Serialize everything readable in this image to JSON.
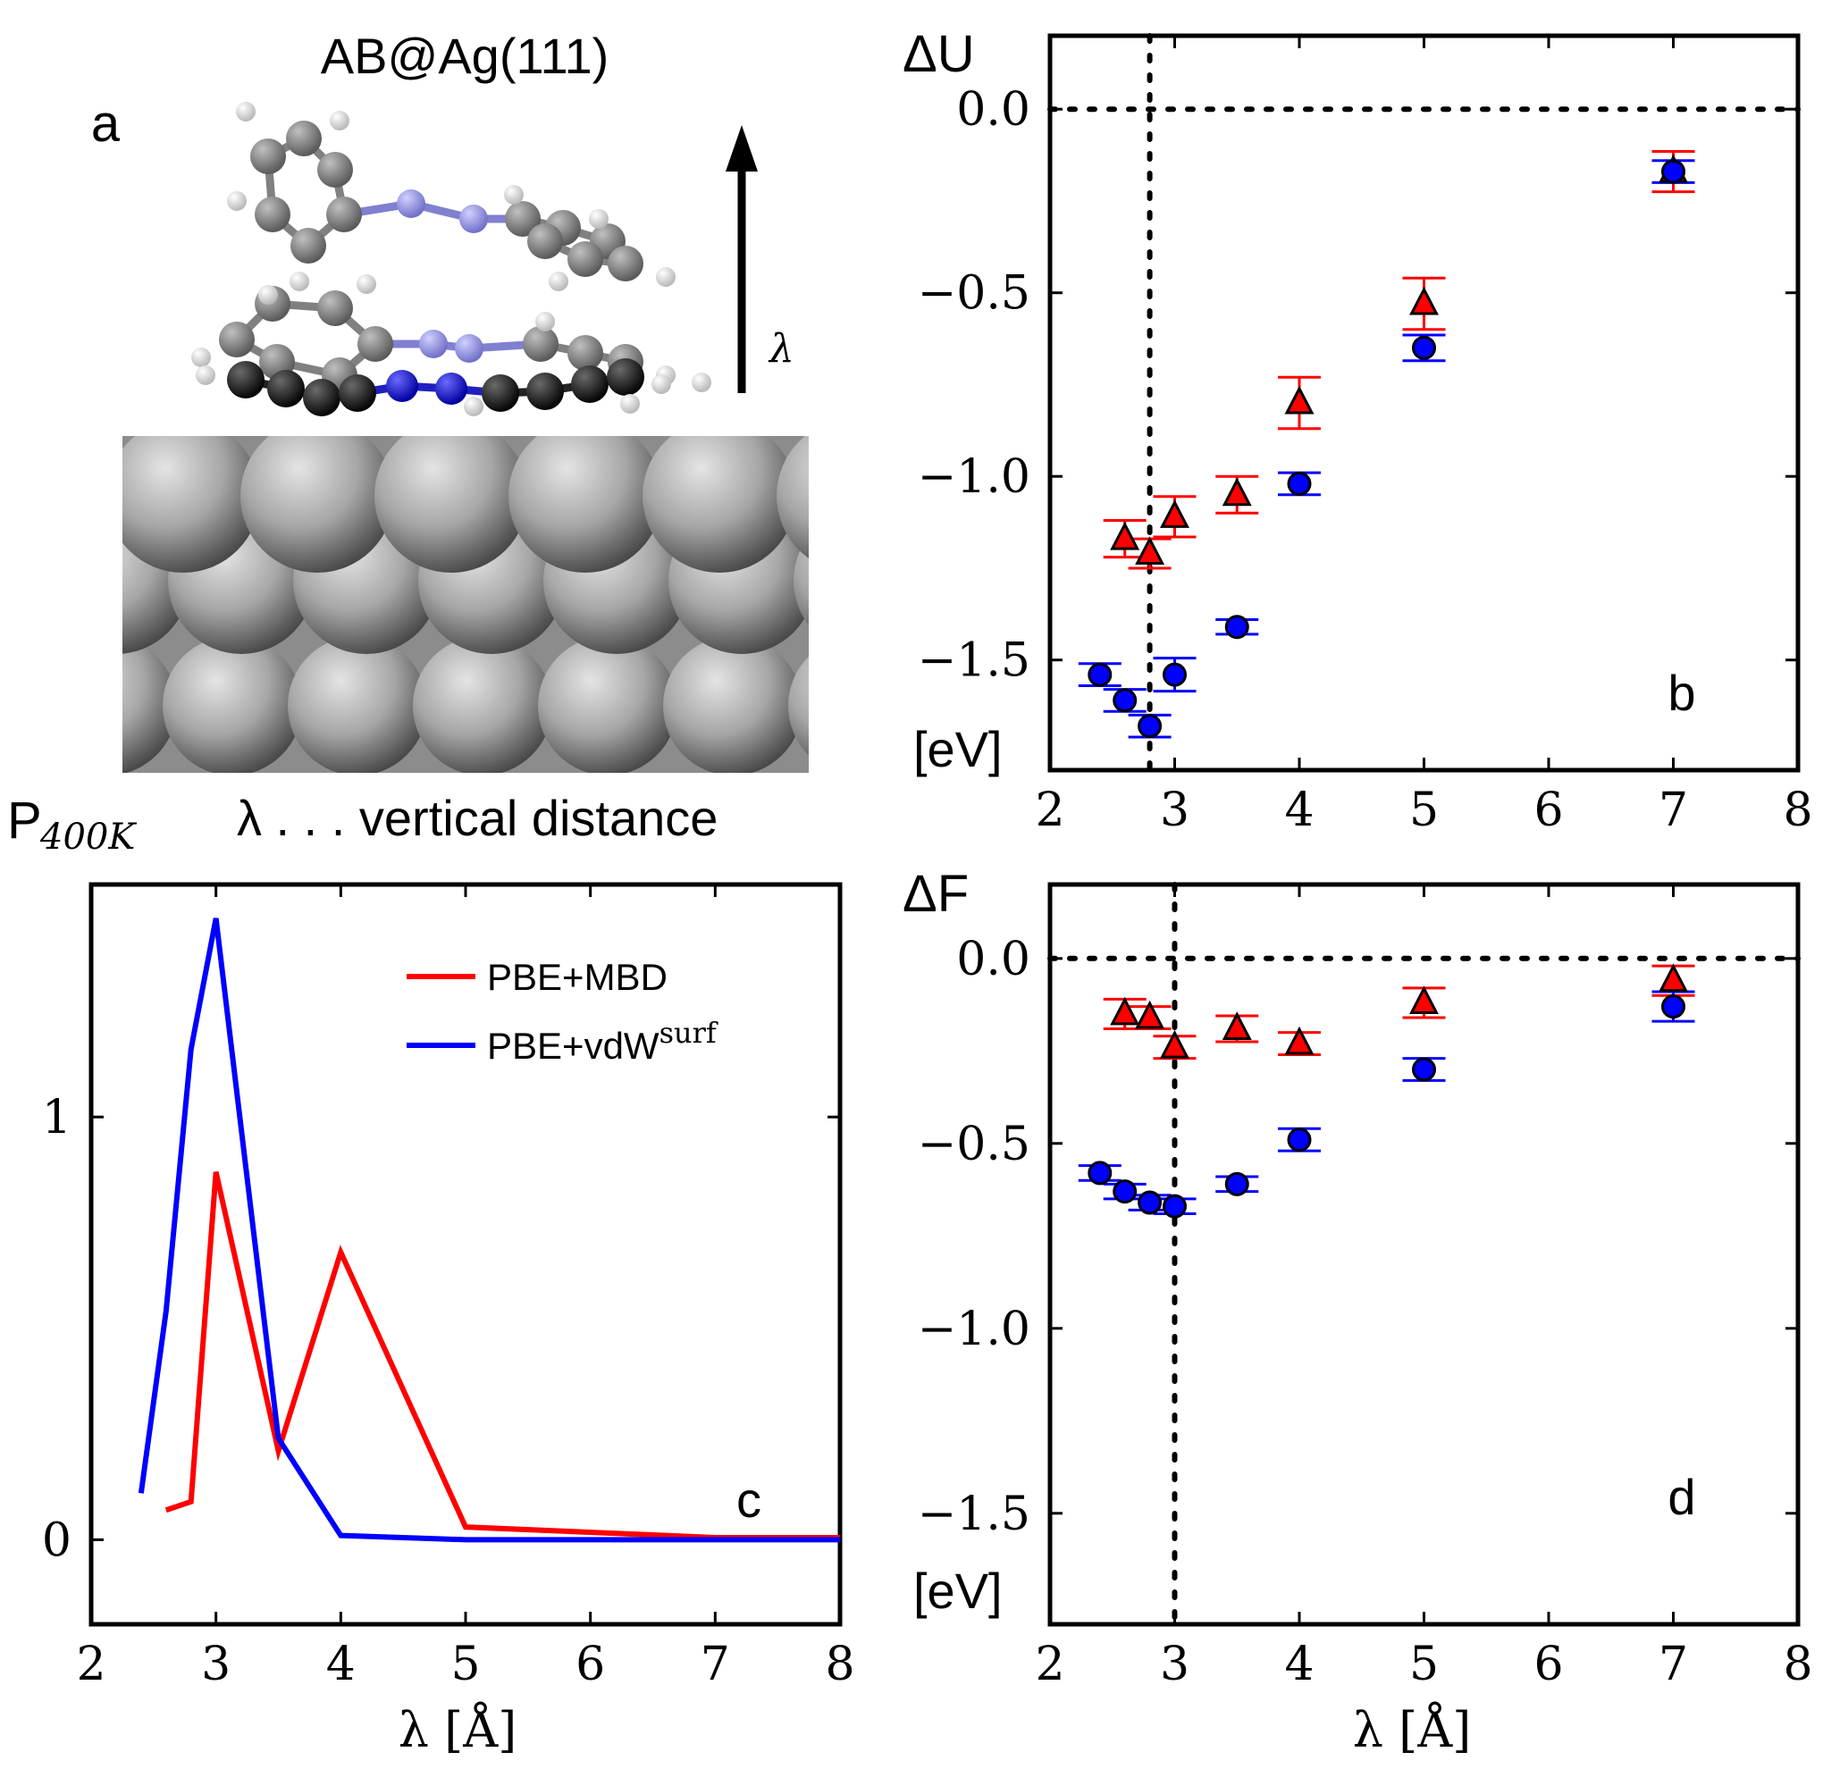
{
  "panel_a": {
    "title": "AB@Ag(111)",
    "letter": "a",
    "arrow_label": "λ",
    "caption": "λ . . . vertical distance",
    "colors": {
      "carbon_dark": "#111111",
      "carbon_light": "#777777",
      "nitrogen_dark": "#1010c8",
      "nitrogen_light": "#8f8fe0",
      "silver": "#a8a8a8",
      "hydrogen": "#f2f2f2"
    }
  },
  "chart_data": [
    {
      "id": "b",
      "type": "scatter",
      "letter": "b",
      "ylabel": "ΔU",
      "unit_label": "[eV]",
      "xlim": [
        2,
        8
      ],
      "ylim": [
        -1.8,
        0.2
      ],
      "xticks": [
        "2",
        "3",
        "4",
        "5",
        "6",
        "7",
        "8"
      ],
      "yticks": [
        "0.0",
        "−0.5",
        "−1.0",
        "−1.5"
      ],
      "ytick_values": [
        0.0,
        -0.5,
        -1.0,
        -1.5
      ],
      "hline": 0.0,
      "vline": 2.8,
      "series": [
        {
          "name": "PBE+MBD",
          "marker": "triangle",
          "color": "#ff0000",
          "x": [
            2.6,
            2.8,
            3.0,
            3.5,
            4.0,
            5.0,
            7.0
          ],
          "y": [
            -1.17,
            -1.21,
            -1.11,
            -1.05,
            -0.8,
            -0.53,
            -0.17
          ],
          "err": [
            0.05,
            0.04,
            0.055,
            0.05,
            0.07,
            0.07,
            0.055
          ]
        },
        {
          "name": "PBE+vdWsurf",
          "marker": "circle",
          "color": "#0000ff",
          "x": [
            2.4,
            2.6,
            2.8,
            3.0,
            3.5,
            4.0,
            5.0,
            7.0
          ],
          "y": [
            -1.54,
            -1.61,
            -1.68,
            -1.54,
            -1.41,
            -1.02,
            -0.65,
            -0.17
          ],
          "err": [
            0.03,
            0.03,
            0.03,
            0.045,
            0.02,
            0.03,
            0.035,
            0.03
          ]
        }
      ]
    },
    {
      "id": "c",
      "type": "line",
      "letter": "c",
      "ylabel": "P",
      "ylabel_sub": "400K",
      "xlabel": "λ [Å]",
      "xlim": [
        2,
        8
      ],
      "ylim": [
        -0.2,
        1.55
      ],
      "xticks": [
        "2",
        "3",
        "4",
        "5",
        "6",
        "7",
        "8"
      ],
      "yticks": [
        "0",
        "1"
      ],
      "ytick_values": [
        0,
        1
      ],
      "legend_position": "top-right",
      "series": [
        {
          "name": "PBE+MBD",
          "color": "#ff0000",
          "x": [
            2.6,
            2.8,
            3.0,
            3.5,
            4.0,
            5.0,
            7.0,
            8.0
          ],
          "y": [
            0.07,
            0.09,
            0.87,
            0.21,
            0.68,
            0.03,
            0.005,
            0.005
          ]
        },
        {
          "name": "PBE+vdW",
          "name_sup": "surf",
          "color": "#0000ff",
          "x": [
            2.4,
            2.6,
            2.8,
            3.0,
            3.5,
            4.0,
            5.0,
            7.0,
            8.0
          ],
          "y": [
            0.11,
            0.54,
            1.16,
            1.47,
            0.24,
            0.01,
            0.0,
            0.0,
            0.0
          ]
        }
      ]
    },
    {
      "id": "d",
      "type": "scatter",
      "letter": "d",
      "ylabel": "ΔF",
      "unit_label": "[eV]",
      "xlabel": "λ [Å]",
      "xlim": [
        2,
        8
      ],
      "ylim": [
        -1.8,
        0.2
      ],
      "xticks": [
        "2",
        "3",
        "4",
        "5",
        "6",
        "7",
        "8"
      ],
      "yticks": [
        "0.0",
        "−0.5",
        "−1.0",
        "−1.5"
      ],
      "ytick_values": [
        0.0,
        -0.5,
        -1.0,
        -1.5
      ],
      "hline": 0.0,
      "vline": 3.0,
      "series": [
        {
          "name": "PBE+MBD",
          "marker": "triangle",
          "color": "#ff0000",
          "x": [
            2.6,
            2.8,
            3.0,
            3.5,
            4.0,
            5.0,
            7.0
          ],
          "y": [
            -0.15,
            -0.16,
            -0.24,
            -0.19,
            -0.23,
            -0.12,
            -0.06
          ],
          "err": [
            0.04,
            0.03,
            0.03,
            0.035,
            0.03,
            0.04,
            0.04
          ]
        },
        {
          "name": "PBE+vdWsurf",
          "marker": "circle",
          "color": "#0000ff",
          "x": [
            2.4,
            2.6,
            2.8,
            3.0,
            3.5,
            4.0,
            5.0,
            7.0
          ],
          "y": [
            -0.58,
            -0.63,
            -0.66,
            -0.67,
            -0.61,
            -0.49,
            -0.3,
            -0.13
          ],
          "err": [
            0.02,
            0.02,
            0.02,
            0.02,
            0.02,
            0.03,
            0.03,
            0.04
          ]
        }
      ]
    }
  ]
}
